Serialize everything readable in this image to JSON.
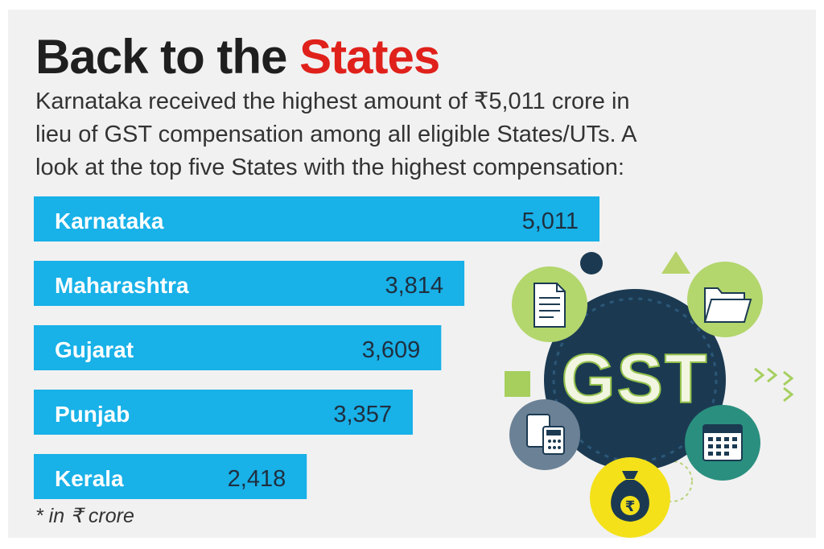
{
  "title": {
    "main": "Back to the",
    "accent": "States"
  },
  "subtitle_lines": [
    "Karnataka received the highest amount of ₹5,011 crore in",
    "lieu of GST compensation among all eligible States/UTs. A",
    "look at the top five States with the highest compensation:"
  ],
  "footnote": "* in ₹ crore",
  "illustration": {
    "center_text": "GST",
    "icons": [
      "document-icon",
      "folder-icon",
      "calculator-icon",
      "calendar-icon",
      "money-bag-rupee-icon",
      "rupee-icon"
    ]
  },
  "colors": {
    "bar": "#18b1e8",
    "title_accent": "#e0211b",
    "title": "#1f1f1f",
    "hub": "#1b3a52"
  },
  "chart_data": {
    "type": "bar",
    "orientation": "horizontal",
    "categories": [
      "Karnataka",
      "Maharashtra",
      "Gujarat",
      "Punjab",
      "Kerala"
    ],
    "values": [
      5011,
      3814,
      3609,
      3357,
      2418
    ],
    "value_labels": [
      "5,011",
      "3,814",
      "3,609",
      "3,357",
      "2,418"
    ],
    "unit": "₹ crore",
    "grid": false,
    "legend": "none"
  }
}
